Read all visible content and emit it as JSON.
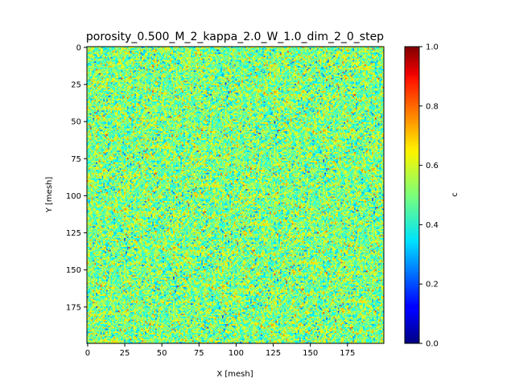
{
  "chart_data": {
    "type": "heatmap",
    "title": "porosity_0.500_M_2_kappa_2.0_W_1.0_dim_2_0_step",
    "xlabel": "X [mesh]",
    "ylabel": "Y [mesh]",
    "colorbar_label": "c",
    "colormap": "jet",
    "grid_size": [
      200,
      200
    ],
    "xlim": [
      0,
      199
    ],
    "ylim": [
      199,
      0
    ],
    "clim": [
      0.0,
      1.0
    ],
    "x_ticks": [
      0,
      25,
      50,
      75,
      100,
      125,
      150,
      175
    ],
    "y_ticks": [
      0,
      25,
      50,
      75,
      100,
      125,
      150,
      175
    ],
    "colorbar_ticks": [
      "0.0",
      "0.2",
      "0.4",
      "0.6",
      "0.8",
      "1.0"
    ],
    "colorbar_tick_values": [
      0.0,
      0.2,
      0.4,
      0.6,
      0.8,
      1.0
    ],
    "value_distribution": {
      "mean": 0.5,
      "std": 0.1,
      "min": 0.2,
      "max": 0.85
    }
  }
}
